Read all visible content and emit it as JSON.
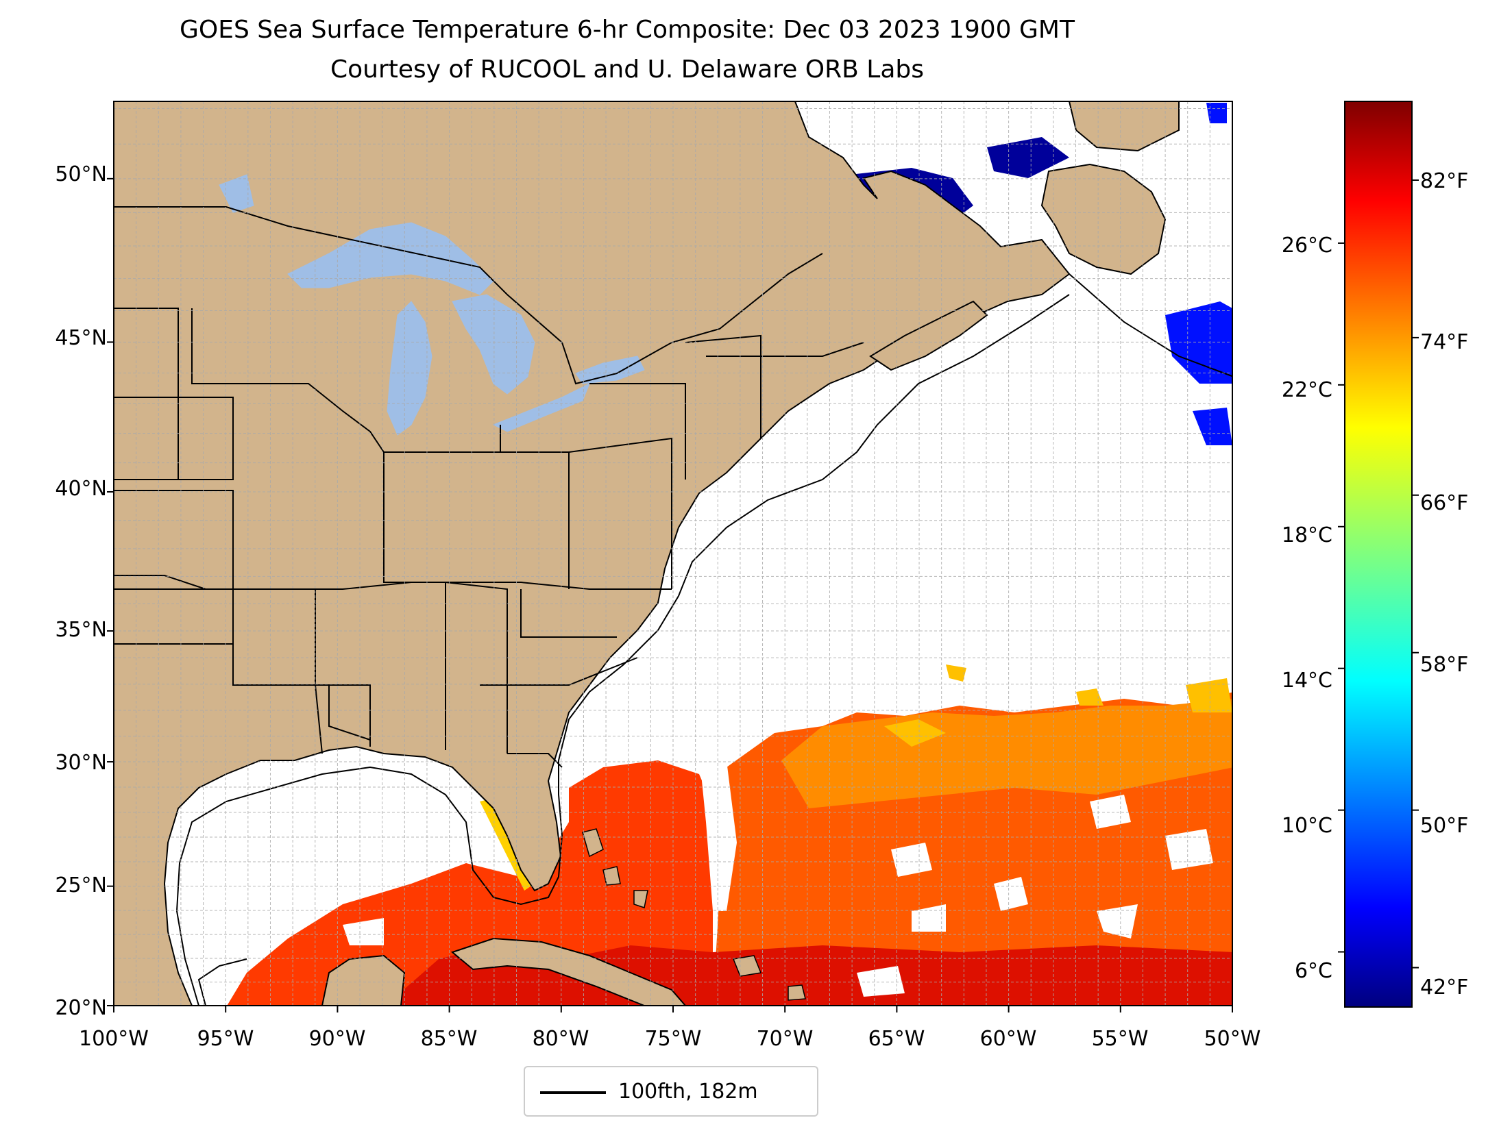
{
  "title": {
    "line1": "GOES Sea Surface Temperature 6-hr Composite: Dec 03 2023 1900 GMT",
    "line2": "Courtesy of RUCOOL and U. Delaware ORB Labs"
  },
  "map": {
    "lon_range": [
      -100,
      -50
    ],
    "lat_range": [
      20,
      52.2
    ],
    "grid": true,
    "land_color": "#d2b48c",
    "lake_color": "#9fbee6",
    "ocean_nodata_color": "#ffffff",
    "lat_ticks": [
      "20°N",
      "25°N",
      "30°N",
      "35°N",
      "40°N",
      "45°N",
      "50°N"
    ],
    "lon_ticks": [
      "100°W",
      "95°W",
      "90°W",
      "85°W",
      "80°W",
      "75°W",
      "70°W",
      "65°W",
      "60°W",
      "55°W",
      "50°W"
    ]
  },
  "colorbar": {
    "colormap": "jet",
    "range_f": [
      40,
      86
    ],
    "colors": [
      "#00007f",
      "#0000ff",
      "#007fff",
      "#00ffff",
      "#7fff7f",
      "#ffff00",
      "#ff7f00",
      "#ff0000",
      "#7f0000"
    ],
    "celsius_ticks": [
      "6°C",
      "10°C",
      "14°C",
      "18°C",
      "22°C",
      "26°C"
    ],
    "fahrenheit_ticks": [
      "42°F",
      "50°F",
      "58°F",
      "66°F",
      "74°F",
      "82°F"
    ]
  },
  "legend": {
    "label": "100fth, 182m",
    "placement": "bottom-center"
  }
}
